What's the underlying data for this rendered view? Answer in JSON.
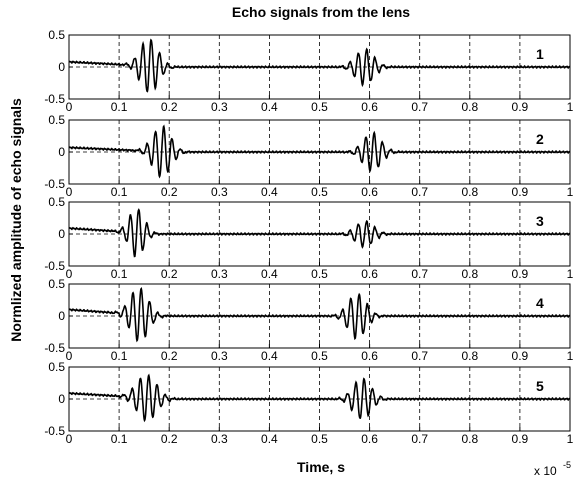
{
  "chart_data": {
    "type": "line",
    "title": "Echo signals from the lens",
    "xlabel": "Time, s",
    "ylabel": "Normlized amplitude of echo signals",
    "x_scale_note": {
      "prefix": "x 10",
      "exponent": "-5"
    },
    "xlim": [
      0,
      1
    ],
    "ylim": [
      -0.5,
      0.5
    ],
    "x_ticks": [
      "0",
      "0.1",
      "0.2",
      "0.3",
      "0.4",
      "0.5",
      "0.6",
      "0.7",
      "0.8",
      "0.9",
      "1"
    ],
    "y_ticks": [
      "0.5",
      "0",
      "-0.5"
    ],
    "grid": true,
    "grid_style": "dashed",
    "line_color": "#000000",
    "panels": [
      {
        "label": "1",
        "baseline_start": 0.08,
        "baseline_decay_end": 0.2,
        "pulses": [
          {
            "center": 0.16,
            "amp": 0.42,
            "freq": 60,
            "width": 0.018
          },
          {
            "center": 0.59,
            "amp": 0.28,
            "freq": 60,
            "width": 0.018
          }
        ]
      },
      {
        "label": "2",
        "baseline_start": 0.07,
        "baseline_decay_end": 0.2,
        "pulses": [
          {
            "center": 0.185,
            "amp": 0.4,
            "freq": 60,
            "width": 0.018
          },
          {
            "center": 0.605,
            "amp": 0.3,
            "freq": 60,
            "width": 0.018
          }
        ]
      },
      {
        "label": "3",
        "baseline_start": 0.09,
        "baseline_decay_end": 0.18,
        "pulses": [
          {
            "center": 0.135,
            "amp": 0.38,
            "freq": 60,
            "width": 0.015
          },
          {
            "center": 0.59,
            "amp": 0.2,
            "freq": 60,
            "width": 0.018
          }
        ]
      },
      {
        "label": "4",
        "baseline_start": 0.1,
        "baseline_decay_end": 0.18,
        "pulses": [
          {
            "center": 0.14,
            "amp": 0.42,
            "freq": 60,
            "width": 0.018
          },
          {
            "center": 0.575,
            "amp": 0.35,
            "freq": 60,
            "width": 0.018
          }
        ]
      },
      {
        "label": "5",
        "baseline_start": 0.09,
        "baseline_decay_end": 0.2,
        "pulses": [
          {
            "center": 0.155,
            "amp": 0.36,
            "freq": 60,
            "width": 0.02
          },
          {
            "center": 0.585,
            "amp": 0.32,
            "freq": 60,
            "width": 0.018
          }
        ]
      }
    ]
  }
}
